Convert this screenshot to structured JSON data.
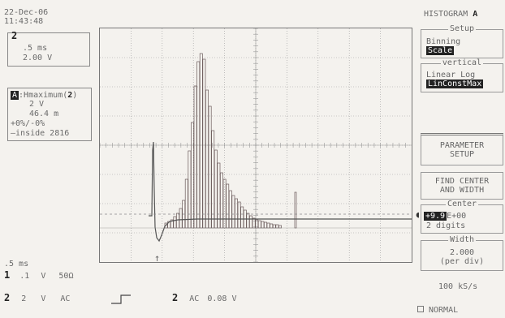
{
  "datetime": {
    "date": "22-Dec-06",
    "time": "11:43:48"
  },
  "channel_box": {
    "channel": "2",
    "timebase": ".5 ms",
    "volts": "2.00 V"
  },
  "measure_box": {
    "header_prefix": "A",
    "header_text": ":Hmaximum(",
    "header_channel": "2",
    "header_close": ")",
    "volts": "2 V",
    "value": "46.4 m",
    "tolerance": "+0%/-0%",
    "status": "inside 2816"
  },
  "bottom_left": {
    "timebase": ".5 ms",
    "row1": {
      "channel": "1",
      "volts": ".1",
      "unit": "V",
      "coupling": "50Ω"
    },
    "row2": {
      "channel": "2",
      "volts": "2",
      "unit": "V",
      "coupling": "AC"
    },
    "trigger": {
      "channel": "2",
      "coupling": "AC",
      "level": "0.08 V"
    }
  },
  "right_menu": {
    "title_label": "HISTOGRAM",
    "title_marker": "A",
    "setup": {
      "title": "Setup",
      "line1": "Binning",
      "selected": "Scale"
    },
    "vertical": {
      "title": "vertical",
      "line1": "Linear Log",
      "selected": "LinConstMax"
    },
    "param_setup": {
      "line1": "PARAMETER",
      "line2": "SETUP"
    },
    "find_center": {
      "line1": "FIND CENTER",
      "line2": "AND WIDTH"
    },
    "center": {
      "title": "Center",
      "value": "+9.9",
      "exponent": "E+00",
      "digits": "2 digits"
    },
    "width": {
      "title": "Width",
      "value": "2.000",
      "unit": "(per div)"
    }
  },
  "sample_rate": "100 kS/s",
  "acquisition_mode": "NORMAL",
  "colors": {
    "background": "#f4f2ee",
    "text": "#6a6a6a",
    "highlight": "#222222",
    "trace": "#666666"
  }
}
